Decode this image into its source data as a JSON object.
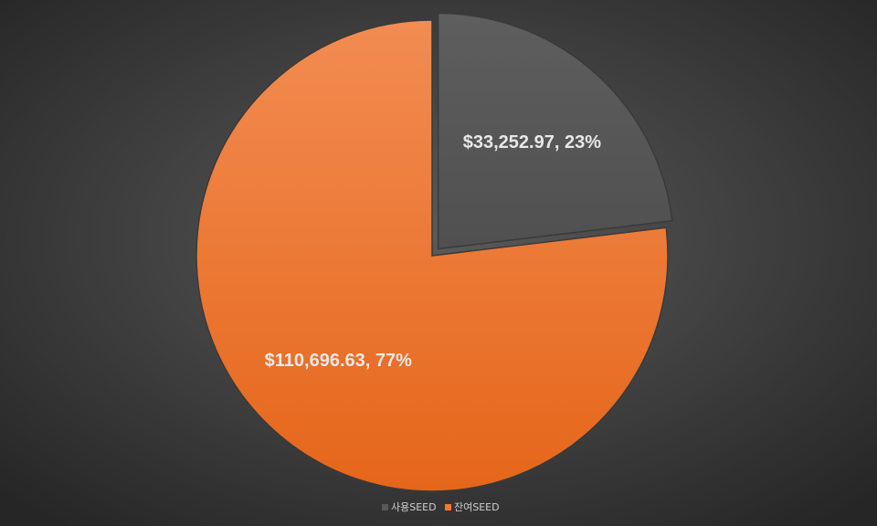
{
  "chart_data": {
    "type": "pie",
    "categories": [
      "사용SEED",
      "잔여SEED"
    ],
    "values": [
      33252.97,
      110696.63
    ],
    "value_labels": [
      "$33,252.97, 23%",
      "$110,696.63, 77%"
    ],
    "colors": [
      "#595959",
      "#f07a2a"
    ],
    "legend": "bottom"
  }
}
